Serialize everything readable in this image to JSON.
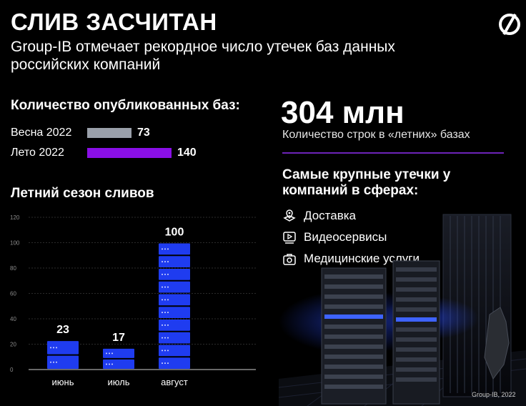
{
  "header": {
    "title": "СЛИВ ЗАСЧИТАН",
    "subtitle": "Group-IB отмечает рекордное число утечек баз данных российских компаний",
    "logo_icon": "cross-circle-logo-icon"
  },
  "published": {
    "heading": "Количество опубликованных баз:",
    "rows": [
      {
        "label": "Весна 2022",
        "value": 73,
        "value_text": "73",
        "color": "#9aa0aa"
      },
      {
        "label": "Лето 2022",
        "value": 140,
        "value_text": "140",
        "color": "#8a0fe6"
      }
    ]
  },
  "stats": {
    "big_number": "304 млн",
    "caption": "Количество строк в «летних» базах",
    "accent": "#6d23b8"
  },
  "sectors": {
    "heading": "Самые крупные утечки у компаний в сферах:",
    "items": [
      {
        "label": "Доставка",
        "icon": "delivery-box-icon"
      },
      {
        "label": "Видеосервисы",
        "icon": "video-player-icon"
      },
      {
        "label": "Медицинские услуги",
        "icon": "medical-case-icon"
      }
    ]
  },
  "chart_data": {
    "type": "bar",
    "title": "Летний сезон сливов",
    "categories": [
      "июнь",
      "июль",
      "август"
    ],
    "values": [
      23,
      17,
      100
    ],
    "value_labels": [
      "23",
      "17",
      "100"
    ],
    "yticks": [
      0,
      20,
      40,
      60,
      80,
      100,
      120
    ],
    "ylim": [
      0,
      120
    ],
    "grid": true,
    "bar_color": "#1f3cf0"
  },
  "footer": "Group-IB, 2022"
}
